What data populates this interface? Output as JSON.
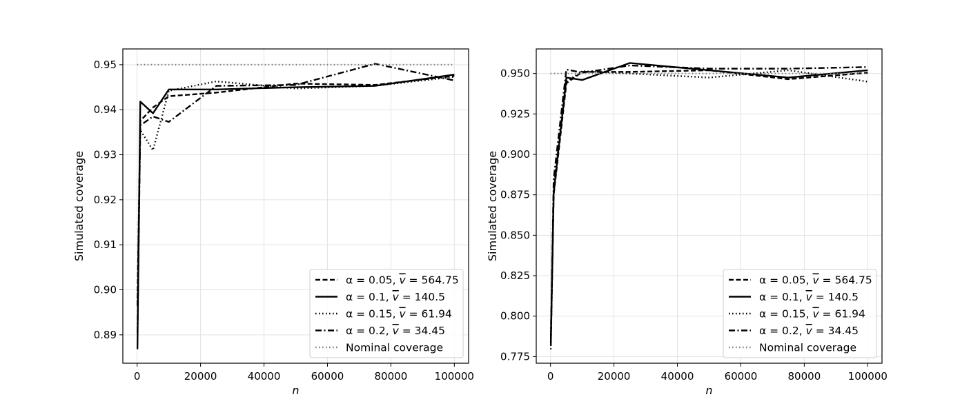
{
  "chart_data": [
    {
      "type": "line",
      "xlabel": "n",
      "ylabel": "Simulated coverage",
      "xlim": [
        -4500,
        104500
      ],
      "ylim": [
        0.8837,
        0.9535
      ],
      "xticks": [
        0,
        20000,
        40000,
        60000,
        80000,
        100000
      ],
      "xtick_labels": [
        "0",
        "20000",
        "40000",
        "60000",
        "80000",
        "100000"
      ],
      "yticks": [
        0.89,
        0.9,
        0.91,
        0.92,
        0.93,
        0.94,
        0.95
      ],
      "ytick_labels": [
        "0.89",
        "0.90",
        "0.91",
        "0.92",
        "0.93",
        "0.94",
        "0.95"
      ],
      "grid": true,
      "legend_position": "bottom-right",
      "series": [
        {
          "name": "α = 0.05, v̄ = 564.75",
          "style": "dashed",
          "color": "#000000",
          "x": [
            100,
            1000,
            5000,
            10000,
            25000,
            50000,
            75000,
            100000
          ],
          "y": [
            0.8965,
            0.9375,
            0.9405,
            0.943,
            0.9438,
            0.9458,
            0.9455,
            0.9475
          ]
        },
        {
          "name": "α = 0.1, v̄ = 140.5",
          "style": "solid",
          "color": "#000000",
          "x": [
            100,
            1000,
            5000,
            10000,
            25000,
            50000,
            75000,
            100000
          ],
          "y": [
            0.8868,
            0.9418,
            0.9392,
            0.9445,
            0.9445,
            0.945,
            0.9453,
            0.9478
          ]
        },
        {
          "name": "α = 0.15, v̄ = 61.94",
          "style": "dotted",
          "color": "#000000",
          "x": [
            100,
            1000,
            5000,
            10000,
            25000,
            50000,
            75000,
            100000
          ],
          "y": [
            0.8975,
            0.9355,
            0.931,
            0.9442,
            0.9463,
            0.9447,
            0.9453,
            0.9473
          ]
        },
        {
          "name": "α = 0.2, v̄ = 34.45",
          "style": "dashdot",
          "color": "#000000",
          "x": [
            100,
            1000,
            5000,
            10000,
            25000,
            50000,
            75000,
            100000
          ],
          "y": [
            0.8905,
            0.9365,
            0.9385,
            0.9373,
            0.9453,
            0.9455,
            0.9502,
            0.9465
          ]
        },
        {
          "name": "Nominal coverage",
          "style": "dotted",
          "color": "#808080",
          "x": [
            0,
            100000
          ],
          "y": [
            0.95,
            0.95
          ]
        }
      ]
    },
    {
      "type": "line",
      "xlabel": "n",
      "ylabel": "Simulated coverage",
      "xlim": [
        -4500,
        104500
      ],
      "ylim": [
        0.7709,
        0.9652
      ],
      "xticks": [
        0,
        20000,
        40000,
        60000,
        80000,
        100000
      ],
      "xtick_labels": [
        "0",
        "20000",
        "40000",
        "60000",
        "80000",
        "100000"
      ],
      "yticks": [
        0.775,
        0.8,
        0.825,
        0.85,
        0.875,
        0.9,
        0.925,
        0.95
      ],
      "ytick_labels": [
        "0.775",
        "0.800",
        "0.825",
        "0.850",
        "0.875",
        "0.900",
        "0.925",
        "0.950"
      ],
      "grid": true,
      "legend_position": "bottom-right",
      "series": [
        {
          "name": "α = 0.05, v̄ = 564.75",
          "style": "dashed",
          "color": "#000000",
          "x": [
            100,
            1000,
            5000,
            10000,
            25000,
            50000,
            75000,
            100000
          ],
          "y": [
            0.782,
            0.875,
            0.944,
            0.951,
            0.951,
            0.952,
            0.9465,
            0.9505
          ]
        },
        {
          "name": "α = 0.1, v̄ = 140.5",
          "style": "solid",
          "color": "#000000",
          "x": [
            100,
            1000,
            5000,
            10000,
            25000,
            50000,
            75000,
            100000
          ],
          "y": [
            0.784,
            0.876,
            0.9475,
            0.946,
            0.9565,
            0.952,
            0.9475,
            0.952
          ]
        },
        {
          "name": "α = 0.15, v̄ = 61.94",
          "style": "dotted",
          "color": "#000000",
          "x": [
            100,
            1000,
            5000,
            10000,
            25000,
            50000,
            75000,
            100000
          ],
          "y": [
            0.7795,
            0.88,
            0.945,
            0.9515,
            0.95,
            0.9475,
            0.952,
            0.945
          ]
        },
        {
          "name": "α = 0.2, v̄ = 34.45",
          "style": "dashdot",
          "color": "#000000",
          "x": [
            100,
            1000,
            5000,
            10000,
            25000,
            50000,
            75000,
            100000
          ],
          "y": [
            0.787,
            0.885,
            0.9525,
            0.9505,
            0.955,
            0.953,
            0.953,
            0.954
          ]
        },
        {
          "name": "Nominal coverage",
          "style": "dotted",
          "color": "#808080",
          "x": [
            0,
            100000
          ],
          "y": [
            0.95,
            0.95
          ]
        }
      ]
    }
  ]
}
